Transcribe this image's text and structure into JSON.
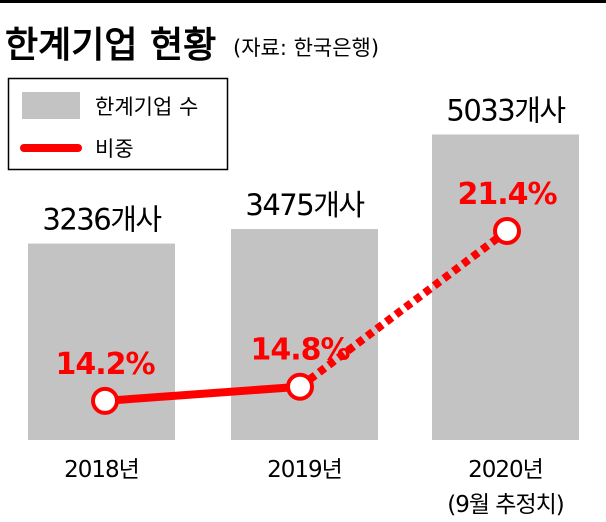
{
  "chart_data": {
    "type": "bar",
    "title": "한계기업 현황",
    "subtitle": "(자료: 한국은행)",
    "categories": [
      "2018년",
      "2019년",
      "2020년"
    ],
    "category_notes": [
      "",
      "",
      "(9월 추정치)"
    ],
    "series": [
      {
        "name": "한계기업 수",
        "type": "bar",
        "values": [
          3236,
          3475,
          5033
        ],
        "labels": [
          "3236개사",
          "3475개사",
          "5033개사"
        ],
        "color": "#c3c3c3"
      },
      {
        "name": "비중",
        "type": "line",
        "values": [
          14.2,
          14.8,
          21.4
        ],
        "labels": [
          "14.2%",
          "14.8%",
          "21.4%"
        ],
        "color": "#ff0000",
        "dashed_last_segment": true
      }
    ],
    "legend": {
      "placement": "top-left",
      "entries": [
        "한계기업 수",
        "비중"
      ]
    },
    "grid": false,
    "xlabel": "",
    "ylabel": ""
  }
}
